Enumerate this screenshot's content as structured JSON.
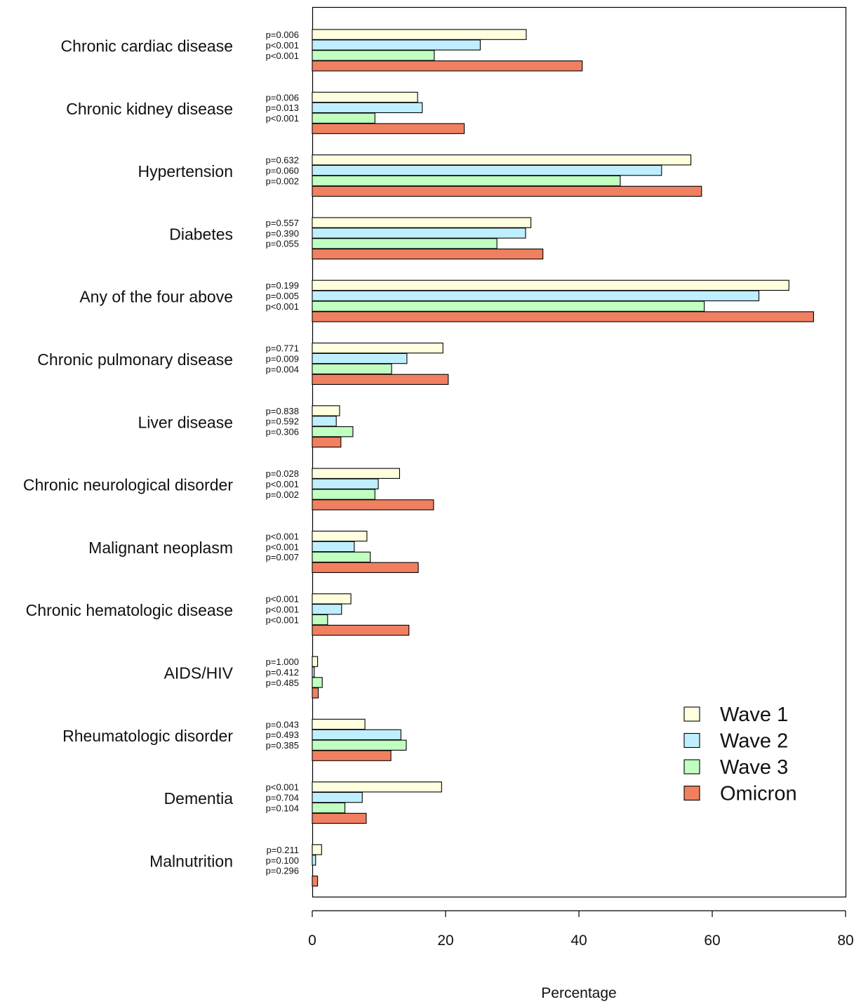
{
  "chart_data": {
    "type": "bar",
    "orientation": "horizontal",
    "xlabel": "Percentage",
    "ylabel": "",
    "xlim": [
      0,
      80
    ],
    "xticks": [
      0,
      20,
      40,
      60,
      80
    ],
    "legend_position": "bottom-right",
    "categories": [
      "Chronic cardiac disease",
      "Chronic kidney disease",
      "Hypertension",
      "Diabetes",
      "Any of the four above",
      "Chronic pulmonary disease",
      "Liver disease",
      "Chronic neurological disorder",
      "Malignant neoplasm",
      "Chronic hematologic disease",
      "AIDS/HIV",
      "Rheumatologic disorder",
      "Dementia",
      "Malnutrition"
    ],
    "series": [
      {
        "name": "Wave 1",
        "color": "#FFFFE0",
        "values": [
          32.1,
          15.8,
          56.8,
          32.8,
          71.5,
          19.6,
          4.1,
          13.1,
          8.2,
          5.8,
          0.8,
          7.9,
          19.4,
          1.4
        ]
      },
      {
        "name": "Wave 2",
        "color": "#BFEFFF",
        "values": [
          25.2,
          16.5,
          52.4,
          32.0,
          67.0,
          14.2,
          3.6,
          9.9,
          6.3,
          4.4,
          0.3,
          13.3,
          7.5,
          0.5
        ]
      },
      {
        "name": "Wave 3",
        "color": "#C1FFC1",
        "values": [
          18.3,
          9.4,
          46.2,
          27.7,
          58.8,
          11.9,
          6.1,
          9.4,
          8.7,
          2.3,
          1.5,
          14.1,
          4.9,
          0.0
        ]
      },
      {
        "name": "Omicron",
        "color": "#F08060",
        "values": [
          40.5,
          22.8,
          58.4,
          34.6,
          75.2,
          20.4,
          4.3,
          18.2,
          15.9,
          14.5,
          0.9,
          11.8,
          8.1,
          0.8
        ]
      }
    ],
    "p_values": [
      [
        "p=0.006",
        "p<0.001",
        "p<0.001"
      ],
      [
        "p=0.006",
        "p=0.013",
        "p<0.001"
      ],
      [
        "p=0.632",
        "p=0.060",
        "p=0.002"
      ],
      [
        "p=0.557",
        "p=0.390",
        "p=0.055"
      ],
      [
        "p=0.199",
        "p=0.005",
        "p<0.001"
      ],
      [
        "p=0.771",
        "p=0.009",
        "p=0.004"
      ],
      [
        "p=0.838",
        "p=0.592",
        "p=0.306"
      ],
      [
        "p=0.028",
        "p<0.001",
        "p=0.002"
      ],
      [
        "p<0.001",
        "p<0.001",
        "p=0.007"
      ],
      [
        "p<0.001",
        "p<0.001",
        "p<0.001"
      ],
      [
        "p=1.000",
        "p=0.412",
        "p=0.485"
      ],
      [
        "p=0.043",
        "p=0.493",
        "p=0.385"
      ],
      [
        "p<0.001",
        "p=0.704",
        "p=0.104"
      ],
      [
        "p=0.211",
        "p=0.100",
        "p=0.296"
      ]
    ]
  }
}
